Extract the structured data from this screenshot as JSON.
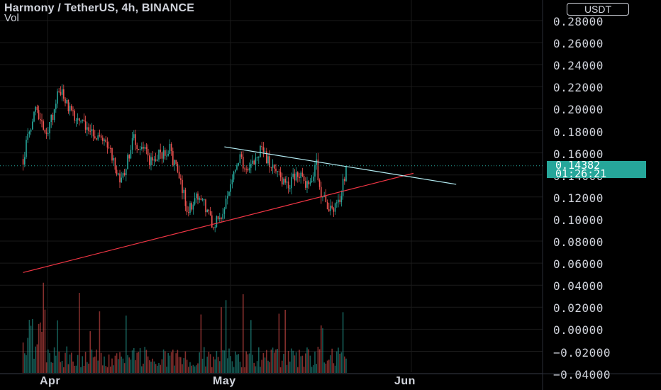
{
  "header": {
    "title": "Harmony / TetherUS, 4h, BINANCE",
    "volume_label": "Vol",
    "currency_button": "USDT"
  },
  "price_axis": {
    "labels": [
      "0.28000",
      "0.26000",
      "0.24000",
      "0.22000",
      "0.20000",
      "0.18000",
      "0.16000",
      "0.14000",
      "0.12000",
      "0.10000",
      "0.08000",
      "0.06000",
      "0.04000",
      "0.02000",
      "0.00000",
      "−0.02000",
      "−0.04000"
    ]
  },
  "time_axis": {
    "labels": [
      "Apr",
      "May",
      "Jun"
    ]
  },
  "last_price": {
    "value": "0.14382",
    "countdown": "01:26:21"
  },
  "colors": {
    "up": "#26a69a",
    "down": "#ef5350",
    "support_line": "#f23645",
    "resistance_line": "#b2ebf2",
    "grid": "#1a1a1a",
    "background": "#000000"
  },
  "chart_data": {
    "type": "candlestick",
    "title": "Harmony / TetherUS, 4h, BINANCE",
    "ylim": [
      -0.045,
      0.29
    ],
    "x_range": [
      "2021-03-28",
      "2021-06-15"
    ],
    "x_ticks": [
      "Apr",
      "May",
      "Jun"
    ],
    "last_close": 0.14382,
    "close_series": [
      {
        "date": "2021-03-28",
        "close": 0.15
      },
      {
        "date": "2021-03-30",
        "close": 0.195
      },
      {
        "date": "2021-04-01",
        "close": 0.172
      },
      {
        "date": "2021-04-03",
        "close": 0.215
      },
      {
        "date": "2021-04-05",
        "close": 0.19
      },
      {
        "date": "2021-04-08",
        "close": 0.175
      },
      {
        "date": "2021-04-11",
        "close": 0.16
      },
      {
        "date": "2021-04-13",
        "close": 0.125
      },
      {
        "date": "2021-04-15",
        "close": 0.168
      },
      {
        "date": "2021-04-18",
        "close": 0.148
      },
      {
        "date": "2021-04-21",
        "close": 0.16
      },
      {
        "date": "2021-04-24",
        "close": 0.105
      },
      {
        "date": "2021-04-26",
        "close": 0.12
      },
      {
        "date": "2021-04-28",
        "close": 0.09
      },
      {
        "date": "2021-04-30",
        "close": 0.105
      },
      {
        "date": "2021-05-02",
        "close": 0.15
      },
      {
        "date": "2021-05-04",
        "close": 0.145
      },
      {
        "date": "2021-05-06",
        "close": 0.158
      },
      {
        "date": "2021-05-08",
        "close": 0.14
      },
      {
        "date": "2021-05-10",
        "close": 0.125
      },
      {
        "date": "2021-05-12",
        "close": 0.135
      },
      {
        "date": "2021-05-14",
        "close": 0.123
      },
      {
        "date": "2021-05-15",
        "close": 0.148
      },
      {
        "date": "2021-05-16",
        "close": 0.115
      },
      {
        "date": "2021-05-18",
        "close": 0.102
      },
      {
        "date": "2021-05-19",
        "close": 0.115
      },
      {
        "date": "2021-05-20",
        "close": 0.14382
      }
    ],
    "trendlines": [
      {
        "kind": "support",
        "from": {
          "date": "2021-03-28",
          "price": 0.047
        },
        "to": {
          "date": "2021-05-31",
          "price": 0.137
        }
      },
      {
        "kind": "resistance",
        "from": {
          "date": "2021-04-30",
          "price": 0.161
        },
        "to": {
          "date": "2021-06-07",
          "price": 0.127
        }
      }
    ]
  }
}
